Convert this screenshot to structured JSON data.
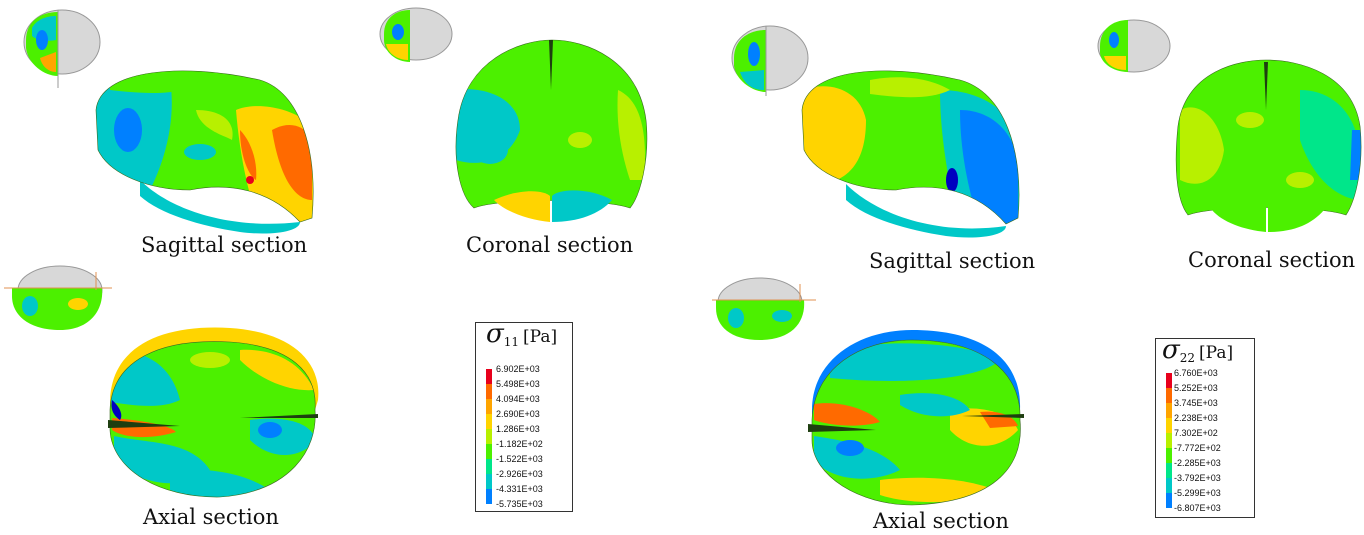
{
  "captions": {
    "left_sagittal": "Sagittal section",
    "left_coronal": "Coronal section",
    "left_axial": "Axial section",
    "right_sagittal": "Sagittal section",
    "right_coronal": "Coronal section",
    "right_axial": "Axial section"
  },
  "legend_left": {
    "symbol": "σ",
    "subscript": "11",
    "unit": "[Pa]",
    "values": [
      "6.902E+03",
      "5.498E+03",
      "4.094E+03",
      "2.690E+03",
      "1.286E+03",
      "-1.182E+02",
      "-1.522E+03",
      "-2.926E+03",
      "-4.331E+03",
      "-5.735E+03"
    ]
  },
  "legend_right": {
    "symbol": "σ",
    "subscript": "22",
    "unit": "[Pa]",
    "values": [
      "6.760E+03",
      "5.252E+03",
      "3.745E+03",
      "2.238E+03",
      "7.302E+02",
      "-7.772E+02",
      "-2.285E+03",
      "-3.792E+03",
      "-5.299E+03",
      "-6.807E+03"
    ]
  },
  "colormap": [
    "#e8001c",
    "#ff6a00",
    "#ffa500",
    "#ffd400",
    "#b8f000",
    "#4cf000",
    "#00e68a",
    "#00c8c8",
    "#0080ff",
    "#0000c0"
  ]
}
